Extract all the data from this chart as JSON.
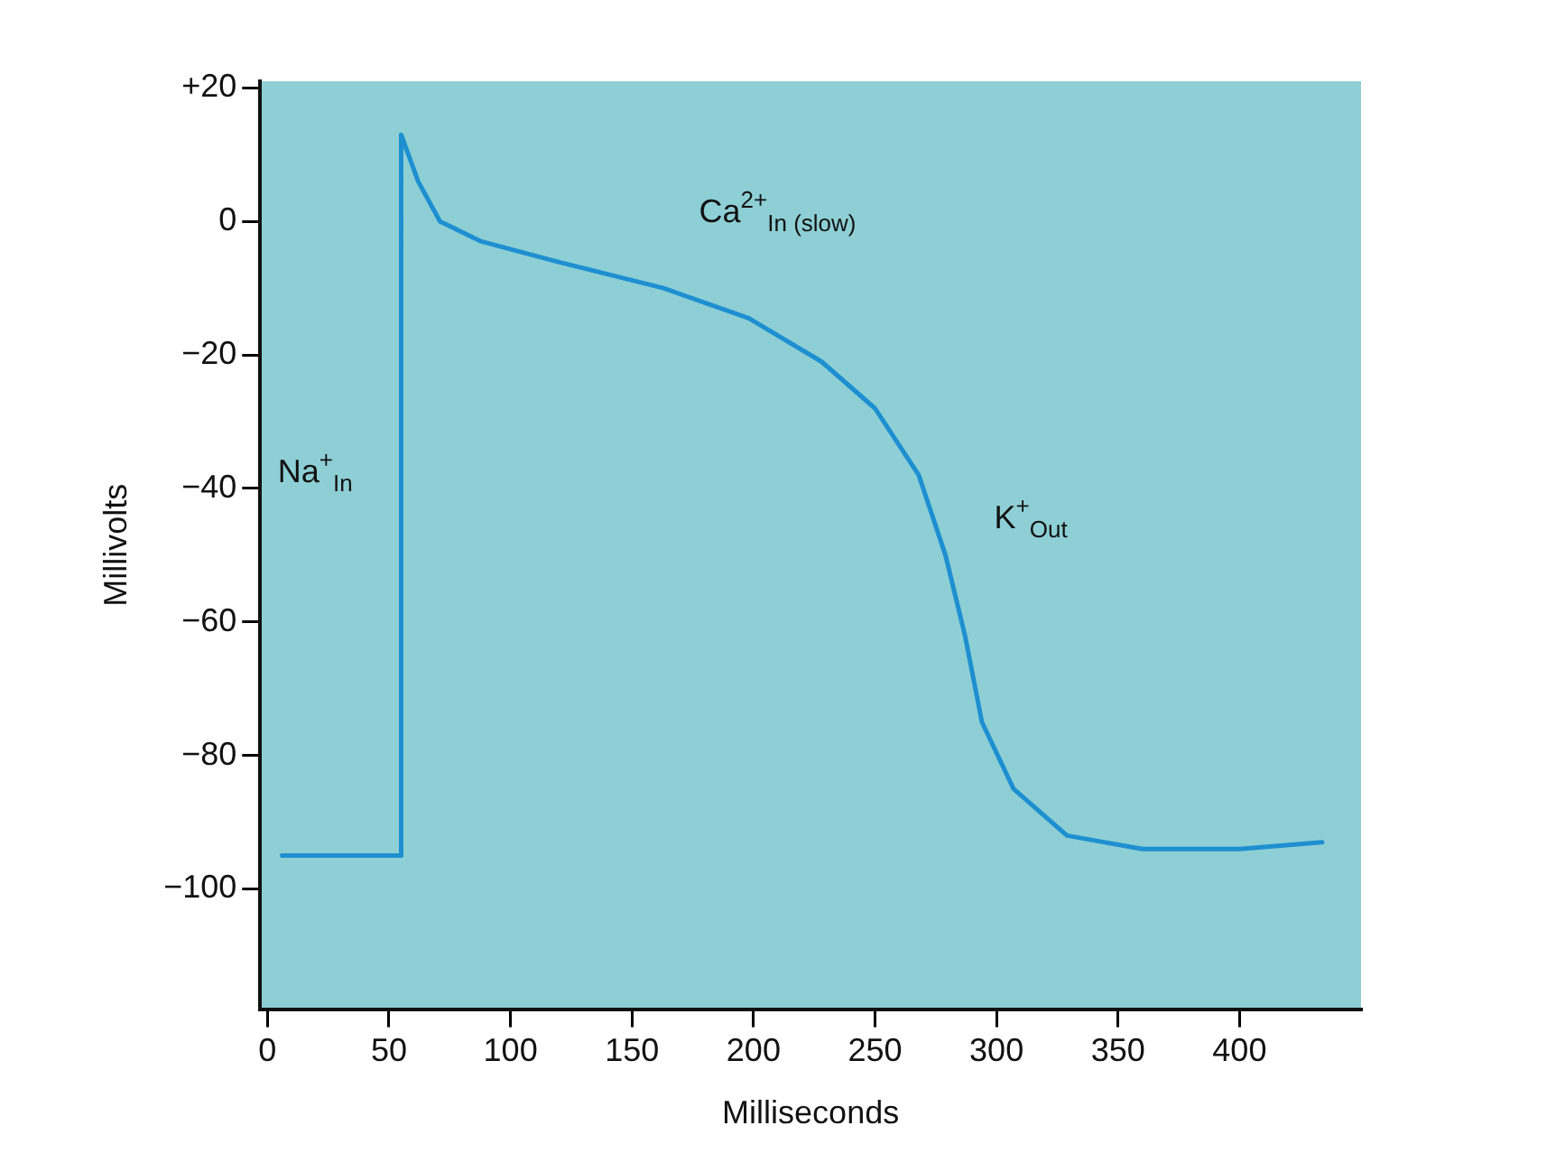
{
  "chart_data": {
    "type": "line",
    "xlabel": "Milliseconds",
    "ylabel": "Millivolts",
    "xlim": [
      -3,
      450
    ],
    "xticks": [
      0,
      50,
      100,
      150,
      200,
      250,
      300,
      350,
      400
    ],
    "ylim": [
      -118,
      21
    ],
    "yticks": [
      {
        "value": -100,
        "label": "−100"
      },
      {
        "value": -80,
        "label": "−80"
      },
      {
        "value": -60,
        "label": "−60"
      },
      {
        "value": -40,
        "label": "−40"
      },
      {
        "value": -20,
        "label": "−20"
      },
      0,
      {
        "value": 20,
        "label": "+20"
      }
    ],
    "series": [
      {
        "color": "#1e8fd0",
        "x": [
          6,
          55,
          55,
          62,
          71,
          88,
          119,
          163,
          198,
          228,
          250,
          268,
          279,
          287,
          294,
          307,
          329,
          360,
          400,
          434
        ],
        "values": [
          -95,
          -95,
          13,
          6,
          0,
          -3,
          -6,
          -10,
          -14.5,
          -21,
          -28,
          -38,
          -50,
          -62,
          -75,
          -85,
          -92,
          -94,
          -94,
          -93
        ]
      }
    ],
    "annotations": [
      "Ca$^{2+}$$_{In (slow)}$",
      "Na$^{+}$$_{In}$",
      "K$^{+}$$_{Out}$"
    ],
    "marker": "none",
    "line_style": "solid",
    "grid": false,
    "legend": false
  }
}
